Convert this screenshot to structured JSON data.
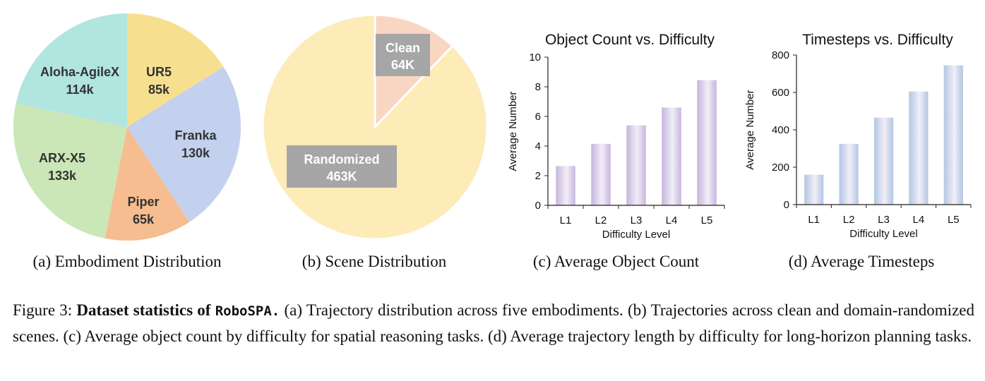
{
  "chart_data": [
    {
      "type": "pie",
      "slices": [
        {
          "name": "UR5",
          "value_label": "85k",
          "value": 85,
          "color": "#f7df90"
        },
        {
          "name": "Franka",
          "value_label": "130k",
          "value": 130,
          "color": "#c3d1ee"
        },
        {
          "name": "Piper",
          "value_label": "65k",
          "value": 65,
          "color": "#f5bd90"
        },
        {
          "name": "ARX-X5",
          "value_label": "133k",
          "value": 133,
          "color": "#cbe6b7"
        },
        {
          "name": "Aloha-AgileX",
          "value_label": "114k",
          "value": 114,
          "color": "#b0e5e0"
        }
      ],
      "caption": "(a) Embodiment Distribution"
    },
    {
      "type": "pie",
      "slices": [
        {
          "name": "Clean",
          "value_label": "64K",
          "value": 64,
          "color": "#f9d6c2"
        },
        {
          "name": "Randomized",
          "value_label": "463K",
          "value": 463,
          "color": "#fdebb8"
        }
      ],
      "caption": "(b) Scene Distribution"
    },
    {
      "type": "bar",
      "title": "Object Count vs. Difficulty",
      "xlabel": "Difficulty Level",
      "ylabel": "Average Number",
      "categories": [
        "L1",
        "L2",
        "L3",
        "L4",
        "L5"
      ],
      "values": [
        2.65,
        4.15,
        5.4,
        6.6,
        8.45
      ],
      "ylim": [
        0,
        10
      ],
      "yticks": [
        0,
        2,
        4,
        6,
        8,
        10
      ],
      "color": "#c7b5dd",
      "caption": "(c) Average Object Count"
    },
    {
      "type": "bar",
      "title": "Timesteps vs. Difficulty",
      "xlabel": "Difficulty Level",
      "ylabel": "Average Number",
      "categories": [
        "L1",
        "L2",
        "L3",
        "L4",
        "L5"
      ],
      "values": [
        160,
        325,
        465,
        605,
        745
      ],
      "ylim": [
        0,
        800
      ],
      "yticks": [
        0,
        200,
        400,
        600,
        800
      ],
      "color": "#b2c6e3",
      "caption": "(d) Average Timesteps"
    }
  ],
  "figure_caption": {
    "prefix": "Figure 3: ",
    "bold_part": "Dataset statistics of ",
    "name": "RoboSPA.",
    "rest": " (a) Trajectory distribution across five embodiments. (b) Trajectories across clean and domain-randomized scenes. (c) Average object count by difficulty for spatial reasoning tasks. (d) Average trajectory length by difficulty for long-horizon planning tasks."
  }
}
